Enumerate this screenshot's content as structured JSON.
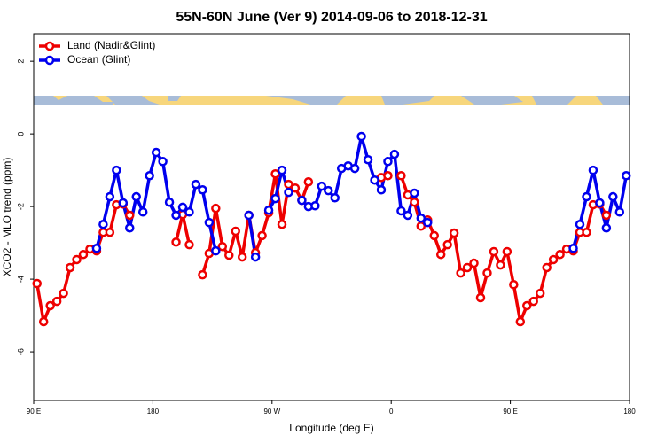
{
  "chart_data": {
    "type": "line",
    "title": "55N-60N June (Ver 9)   2014-09-06 to 2018-12-31",
    "x_label": "Longitude (deg E)",
    "y_label": "XCO2 - MLO trend (ppm)",
    "x": [
      92.5,
      97.5,
      102.5,
      107.5,
      112.5,
      117.5,
      122.5,
      127.5,
      132.5,
      137.5,
      142.5,
      147.5,
      152.5,
      157.5,
      162.5,
      167.5,
      172.5,
      177.5,
      182.5,
      187.5,
      192.5,
      197.5,
      202.5,
      207.5,
      212.5,
      217.5,
      222.5,
      227.5,
      232.5,
      237.5,
      242.5,
      247.5,
      252.5,
      257.5,
      262.5,
      267.5,
      272.5,
      277.5,
      282.5,
      287.5,
      292.5,
      297.5,
      302.5,
      307.5,
      312.5,
      317.5,
      322.5,
      327.5,
      332.5,
      337.5,
      342.5,
      347.5,
      352.5,
      357.5,
      362.5,
      367.5,
      372.5,
      377.5,
      382.5,
      387.5,
      392.5,
      397.5,
      402.5,
      407.5,
      412.5,
      417.5,
      422.5,
      427.5,
      432.5,
      437.5,
      442.5,
      447.5,
      452.5,
      457.5,
      462.5,
      467.5,
      472.5,
      477.5,
      482.5,
      487.5,
      492.5,
      497.5,
      502.5,
      507.5,
      512.5,
      517.5,
      522.5,
      527.5,
      532.5,
      537.5
    ],
    "series": [
      {
        "name": "Land (Nadir&Glint)",
        "color": "#ee0000",
        "values": [
          -4.12,
          -5.17,
          -4.73,
          -4.61,
          -4.39,
          -3.68,
          -3.46,
          -3.32,
          -3.17,
          -3.22,
          -2.71,
          -2.71,
          -1.95,
          -1.93,
          -2.24,
          null,
          null,
          null,
          null,
          null,
          null,
          -2.98,
          -2.22,
          -3.05,
          null,
          -3.88,
          -3.29,
          -2.05,
          -3.1,
          -3.34,
          -2.68,
          -3.39,
          -2.24,
          -3.27,
          -2.8,
          -2.17,
          -1.1,
          -2.49,
          -1.39,
          -1.49,
          -1.83,
          -1.32,
          null,
          null,
          null,
          null,
          null,
          null,
          null,
          null,
          null,
          null,
          -1.2,
          -1.15,
          null,
          -1.15,
          -1.68,
          -1.88,
          -2.54,
          -2.37,
          -2.8,
          -3.32,
          -3.05,
          -2.73,
          -3.83,
          -3.68,
          -3.56,
          -4.51,
          -3.83,
          -3.24,
          -3.61,
          -3.24,
          -4.15,
          -5.17,
          -4.73,
          -4.61,
          -4.39,
          -3.68,
          -3.46,
          -3.32,
          -3.17,
          -3.22,
          -2.71,
          -2.71,
          -1.95,
          -1.93,
          -2.24,
          null,
          null,
          null
        ]
      },
      {
        "name": "Ocean (Glint)",
        "color": "#0000ee",
        "values": [
          null,
          null,
          null,
          null,
          null,
          null,
          null,
          null,
          null,
          -3.15,
          -2.49,
          -1.73,
          -1.0,
          -1.9,
          -2.59,
          -1.73,
          -2.15,
          -1.15,
          -0.51,
          -0.76,
          -1.88,
          -2.24,
          -2.02,
          -2.15,
          -1.39,
          -1.54,
          -2.44,
          -3.22,
          null,
          null,
          null,
          null,
          -2.24,
          -3.39,
          null,
          -2.1,
          -1.78,
          -1.0,
          -1.61,
          null,
          -1.83,
          -2.0,
          -1.98,
          -1.44,
          -1.56,
          -1.76,
          -0.95,
          -0.88,
          -0.95,
          -0.07,
          -0.71,
          -1.27,
          -1.54,
          -0.76,
          -0.56,
          -2.12,
          -2.24,
          -1.63,
          -2.32,
          -2.44,
          null,
          null,
          null,
          null,
          null,
          null,
          null,
          null,
          null,
          null,
          null,
          null,
          null,
          null,
          null,
          null,
          null,
          null,
          null,
          null,
          null,
          -3.15,
          -2.49,
          -1.73,
          -1.0,
          -1.9,
          -2.59,
          -1.73,
          -2.15,
          -1.15
        ]
      }
    ],
    "xlim": [
      90,
      540
    ],
    "ylim": [
      -7.34,
      2.76
    ],
    "xticks": [
      {
        "value": 90,
        "label": "90 E"
      },
      180,
      {
        "value": 270,
        "label": "90 W"
      },
      {
        "value": 360,
        "label": "0"
      },
      {
        "value": 450,
        "label": "90 E"
      },
      {
        "value": 540,
        "label": "180"
      }
    ],
    "yticks": [
      2,
      0,
      -2,
      -4,
      -6
    ],
    "legend": "top-left"
  }
}
